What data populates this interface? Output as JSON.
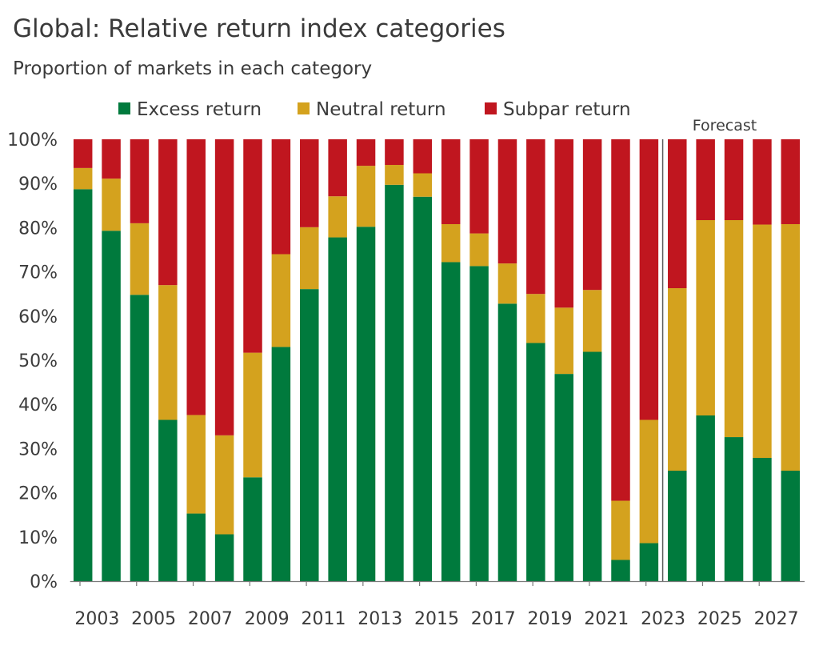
{
  "chart_data": {
    "type": "bar",
    "stacked": true,
    "title": "Global: Relative return index categories",
    "subtitle": "Proportion of markets in each category",
    "annotation": "Forecast",
    "forecast_start": 2024,
    "x": [
      2003,
      2004,
      2005,
      2006,
      2007,
      2008,
      2009,
      2010,
      2011,
      2012,
      2013,
      2014,
      2015,
      2016,
      2017,
      2018,
      2019,
      2020,
      2021,
      2022,
      2023,
      2024,
      2025,
      2026,
      2027,
      2028
    ],
    "x_tick_labels": [
      "2003",
      "2005",
      "2007",
      "2009",
      "2011",
      "2013",
      "2015",
      "2017",
      "2019",
      "2021",
      "2023",
      "2025",
      "2027"
    ],
    "y_tick_labels": [
      "0%",
      "10%",
      "20%",
      "30%",
      "40%",
      "50%",
      "60%",
      "70%",
      "80%",
      "90%",
      "100%"
    ],
    "ylim": [
      0,
      100
    ],
    "legend_position": "top",
    "series": [
      {
        "name": "Excess return",
        "color": "#007a3d",
        "values": [
          88.7,
          79.3,
          64.8,
          36.5,
          15.3,
          10.6,
          23.5,
          53,
          66.1,
          77.8,
          80.2,
          89.7,
          87,
          72.2,
          71.3,
          62.8,
          53.9,
          46.9,
          51.9,
          4.8,
          8.6,
          25,
          37.5,
          32.6,
          27.9,
          25
        ]
      },
      {
        "name": "Neutral return",
        "color": "#d4a21e",
        "values": [
          4.8,
          11.8,
          16.2,
          30.5,
          22.3,
          22.4,
          28.2,
          21,
          14,
          9.3,
          13.8,
          4.5,
          5.3,
          8.6,
          7.4,
          9.1,
          11.1,
          15,
          14,
          13.4,
          27.9,
          41.3,
          44.2,
          49.1,
          52.8,
          55.8
        ]
      },
      {
        "name": "Subpar return",
        "color": "#c0161f",
        "values": [
          6.5,
          8.9,
          19,
          33,
          62.4,
          67,
          48.3,
          26,
          19.9,
          12.9,
          6,
          5.8,
          7.7,
          19.2,
          21.3,
          28.1,
          35,
          38.1,
          34.1,
          81.8,
          63.5,
          33.7,
          18.3,
          18.3,
          19.3,
          19.2
        ]
      }
    ]
  }
}
